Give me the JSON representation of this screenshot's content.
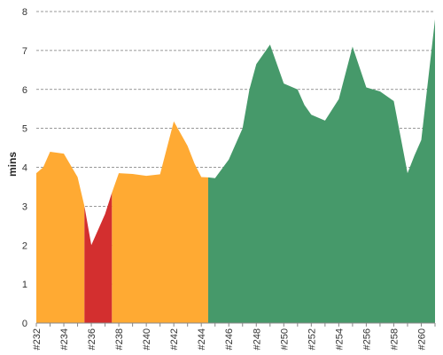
{
  "chart_data": {
    "type": "area",
    "title": "",
    "xlabel": "",
    "ylabel": "mins",
    "ylim": [
      0,
      8
    ],
    "yticks": [
      "0",
      "1",
      "2",
      "3",
      "4",
      "5",
      "6",
      "7",
      "8"
    ],
    "grid": true,
    "x": [
      "#232",
      "#233",
      "#234",
      "#235",
      "#236",
      "#237",
      "#238",
      "#239",
      "#240",
      "#241",
      "#242",
      "#243",
      "#244",
      "#245",
      "#246",
      "#247",
      "#248",
      "#249",
      "#250",
      "#251",
      "#252",
      "#253",
      "#254",
      "#255",
      "#256",
      "#257",
      "#258",
      "#259",
      "#260",
      "#261"
    ],
    "xtick_labels": [
      "#232",
      "#234",
      "#236",
      "#238",
      "#240",
      "#242",
      "#244",
      "#246",
      "#248",
      "#250",
      "#252",
      "#254",
      "#256",
      "#258",
      "#260"
    ],
    "points": [
      {
        "x": "#232",
        "y": 3.85
      },
      {
        "x": "#232.5",
        "y": 4.0
      },
      {
        "x": "#233",
        "y": 4.4
      },
      {
        "x": "#234",
        "y": 4.35
      },
      {
        "x": "#235",
        "y": 3.75
      },
      {
        "x": "#235.5",
        "y": 3.0
      },
      {
        "x": "#236",
        "y": 2.0
      },
      {
        "x": "#237",
        "y": 2.8
      },
      {
        "x": "#237.5",
        "y": 3.35
      },
      {
        "x": "#238",
        "y": 3.85
      },
      {
        "x": "#239",
        "y": 3.83
      },
      {
        "x": "#240",
        "y": 3.78
      },
      {
        "x": "#241",
        "y": 3.82
      },
      {
        "x": "#242",
        "y": 5.18
      },
      {
        "x": "#243",
        "y": 4.55
      },
      {
        "x": "#243.5",
        "y": 4.1
      },
      {
        "x": "#244",
        "y": 3.75
      },
      {
        "x": "#244.5",
        "y": 3.74
      },
      {
        "x": "#245",
        "y": 3.72
      },
      {
        "x": "#246",
        "y": 4.2
      },
      {
        "x": "#247",
        "y": 5.0
      },
      {
        "x": "#247.5",
        "y": 6.0
      },
      {
        "x": "#248",
        "y": 6.65
      },
      {
        "x": "#249",
        "y": 7.15
      },
      {
        "x": "#250",
        "y": 6.15
      },
      {
        "x": "#251",
        "y": 6.0
      },
      {
        "x": "#251.5",
        "y": 5.6
      },
      {
        "x": "#252",
        "y": 5.35
      },
      {
        "x": "#253",
        "y": 5.2
      },
      {
        "x": "#254",
        "y": 5.75
      },
      {
        "x": "#255",
        "y": 7.1
      },
      {
        "x": "#256",
        "y": 6.05
      },
      {
        "x": "#257",
        "y": 5.95
      },
      {
        "x": "#258",
        "y": 5.7
      },
      {
        "x": "#259",
        "y": 3.85
      },
      {
        "x": "#259.5",
        "y": 4.3
      },
      {
        "x": "#260",
        "y": 4.7
      },
      {
        "x": "#261",
        "y": 7.8
      }
    ],
    "segments": [
      {
        "status": "unstable",
        "color": "#ffaa33",
        "from": "#232",
        "to": "#235.5"
      },
      {
        "status": "failed",
        "color": "#d32f2f",
        "from": "#235.5",
        "to": "#237.5"
      },
      {
        "status": "unstable",
        "color": "#ffaa33",
        "from": "#237.5",
        "to": "#244.5"
      },
      {
        "status": "success",
        "color": "#46996a",
        "from": "#244.5",
        "to": "#261"
      }
    ]
  }
}
